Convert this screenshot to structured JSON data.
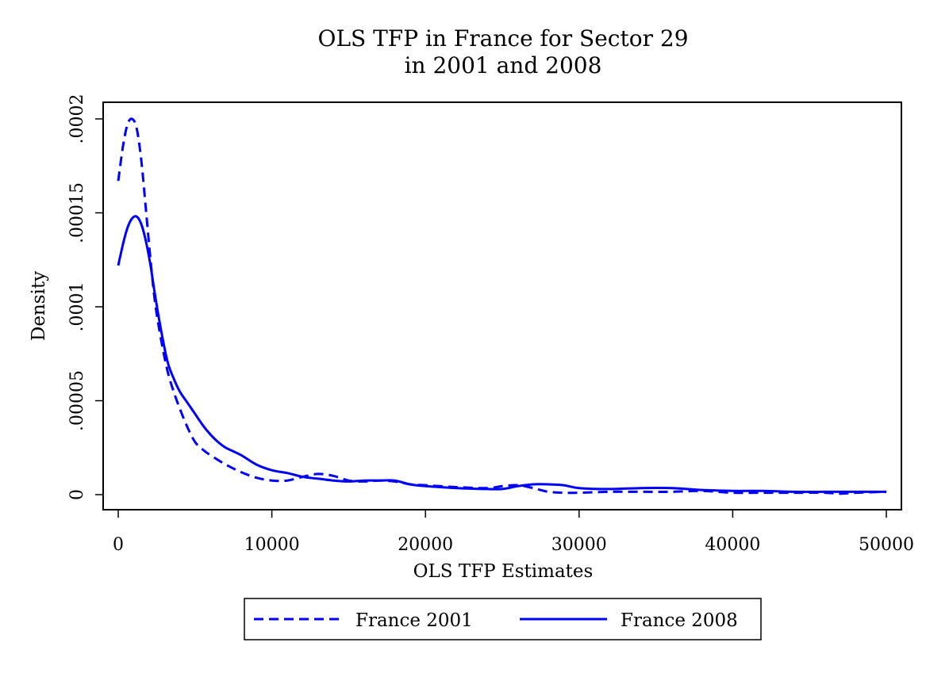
{
  "chart_data": {
    "type": "line",
    "title": "OLS TFP in France for Sector 29",
    "subtitle": "in 2001 and 2008",
    "xlabel": "OLS TFP Estimates",
    "ylabel": "Density",
    "xlim": [
      0,
      50000
    ],
    "ylim": [
      0,
      0.0002
    ],
    "x_ticks": [
      {
        "value": 0,
        "label": "0"
      },
      {
        "value": 10000,
        "label": "10000"
      },
      {
        "value": 20000,
        "label": "20000"
      },
      {
        "value": 30000,
        "label": "30000"
      },
      {
        "value": 40000,
        "label": "40000"
      },
      {
        "value": 50000,
        "label": "50000"
      }
    ],
    "y_ticks": [
      {
        "value": 0,
        "label": "0"
      },
      {
        "value": 5e-05,
        "label": ".00005"
      },
      {
        "value": 0.0001,
        "label": ".0001"
      },
      {
        "value": 0.00015,
        "label": ".00015"
      },
      {
        "value": 0.0002,
        "label": ".0002"
      }
    ],
    "grid": false,
    "legend_position": "bottom",
    "series": [
      {
        "name": "France 2001",
        "style": "dashed",
        "color": "#0000ff",
        "x": [
          0,
          300,
          600,
          900,
          1200,
          1500,
          1800,
          2100,
          2400,
          2800,
          3200,
          3600,
          4000,
          4500,
          5000,
          5500,
          6000,
          7000,
          8000,
          9000,
          10000,
          11000,
          12000,
          13000,
          14000,
          15000,
          16000,
          17000,
          18000,
          19000,
          20000,
          22000,
          24000,
          25000,
          26000,
          27000,
          28000,
          29000,
          30000,
          32000,
          34000,
          36000,
          38000,
          40000,
          42000,
          44000,
          46000,
          47000,
          48000,
          50000
        ],
        "y": [
          0.000167,
          0.000185,
          0.000197,
          0.0002,
          0.000195,
          0.000178,
          0.000152,
          0.000125,
          0.000102,
          8.2e-05,
          6.6e-05,
          5.5e-05,
          4.6e-05,
          3.6e-05,
          2.8e-05,
          2.4e-05,
          2.1e-05,
          1.6e-05,
          1.2e-05,
          9e-06,
          7.5e-06,
          7.5e-06,
          9.5e-06,
          1.1e-05,
          1e-05,
          7.5e-06,
          7e-06,
          7.5e-06,
          7e-06,
          5.5e-06,
          5e-06,
          4e-06,
          3.5e-06,
          4.5e-06,
          5e-06,
          3.5e-06,
          1.5e-06,
          1e-06,
          1e-06,
          1.5e-06,
          1.5e-06,
          1.5e-06,
          2e-06,
          1e-06,
          1e-06,
          1e-06,
          1e-06,
          5e-07,
          1e-06,
          1.5e-06
        ]
      },
      {
        "name": "France 2008",
        "style": "solid",
        "color": "#0000ff",
        "x": [
          0,
          300,
          600,
          900,
          1200,
          1500,
          1800,
          2100,
          2400,
          2800,
          3200,
          3600,
          4000,
          4500,
          5000,
          5500,
          6000,
          6500,
          7000,
          8000,
          9000,
          10000,
          11000,
          12000,
          13000,
          14000,
          15000,
          16000,
          17000,
          18000,
          19000,
          20000,
          22000,
          24000,
          25000,
          26000,
          27000,
          28000,
          29000,
          30000,
          32000,
          34000,
          36000,
          38000,
          40000,
          42000,
          44000,
          46000,
          47000,
          48000,
          50000
        ],
        "y": [
          0.000122,
          0.000133,
          0.000142,
          0.000147,
          0.000148,
          0.000144,
          0.000135,
          0.000122,
          0.000106,
          8.7e-05,
          7.1e-05,
          6.2e-05,
          5.5e-05,
          4.9e-05,
          4.3e-05,
          3.7e-05,
          3.2e-05,
          2.8e-05,
          2.5e-05,
          2.1e-05,
          1.6e-05,
          1.3e-05,
          1.15e-05,
          9.5e-06,
          8.5e-06,
          7.5e-06,
          7e-06,
          7.5e-06,
          7.5e-06,
          7.5e-06,
          5.5e-06,
          4.5e-06,
          3.5e-06,
          3e-06,
          3e-06,
          4.5e-06,
          5.5e-06,
          5.5e-06,
          5e-06,
          3.5e-06,
          3e-06,
          3.5e-06,
          3.5e-06,
          2.5e-06,
          2e-06,
          2e-06,
          1.5e-06,
          1.5e-06,
          1.5e-06,
          1.5e-06,
          1.5e-06
        ]
      }
    ]
  }
}
